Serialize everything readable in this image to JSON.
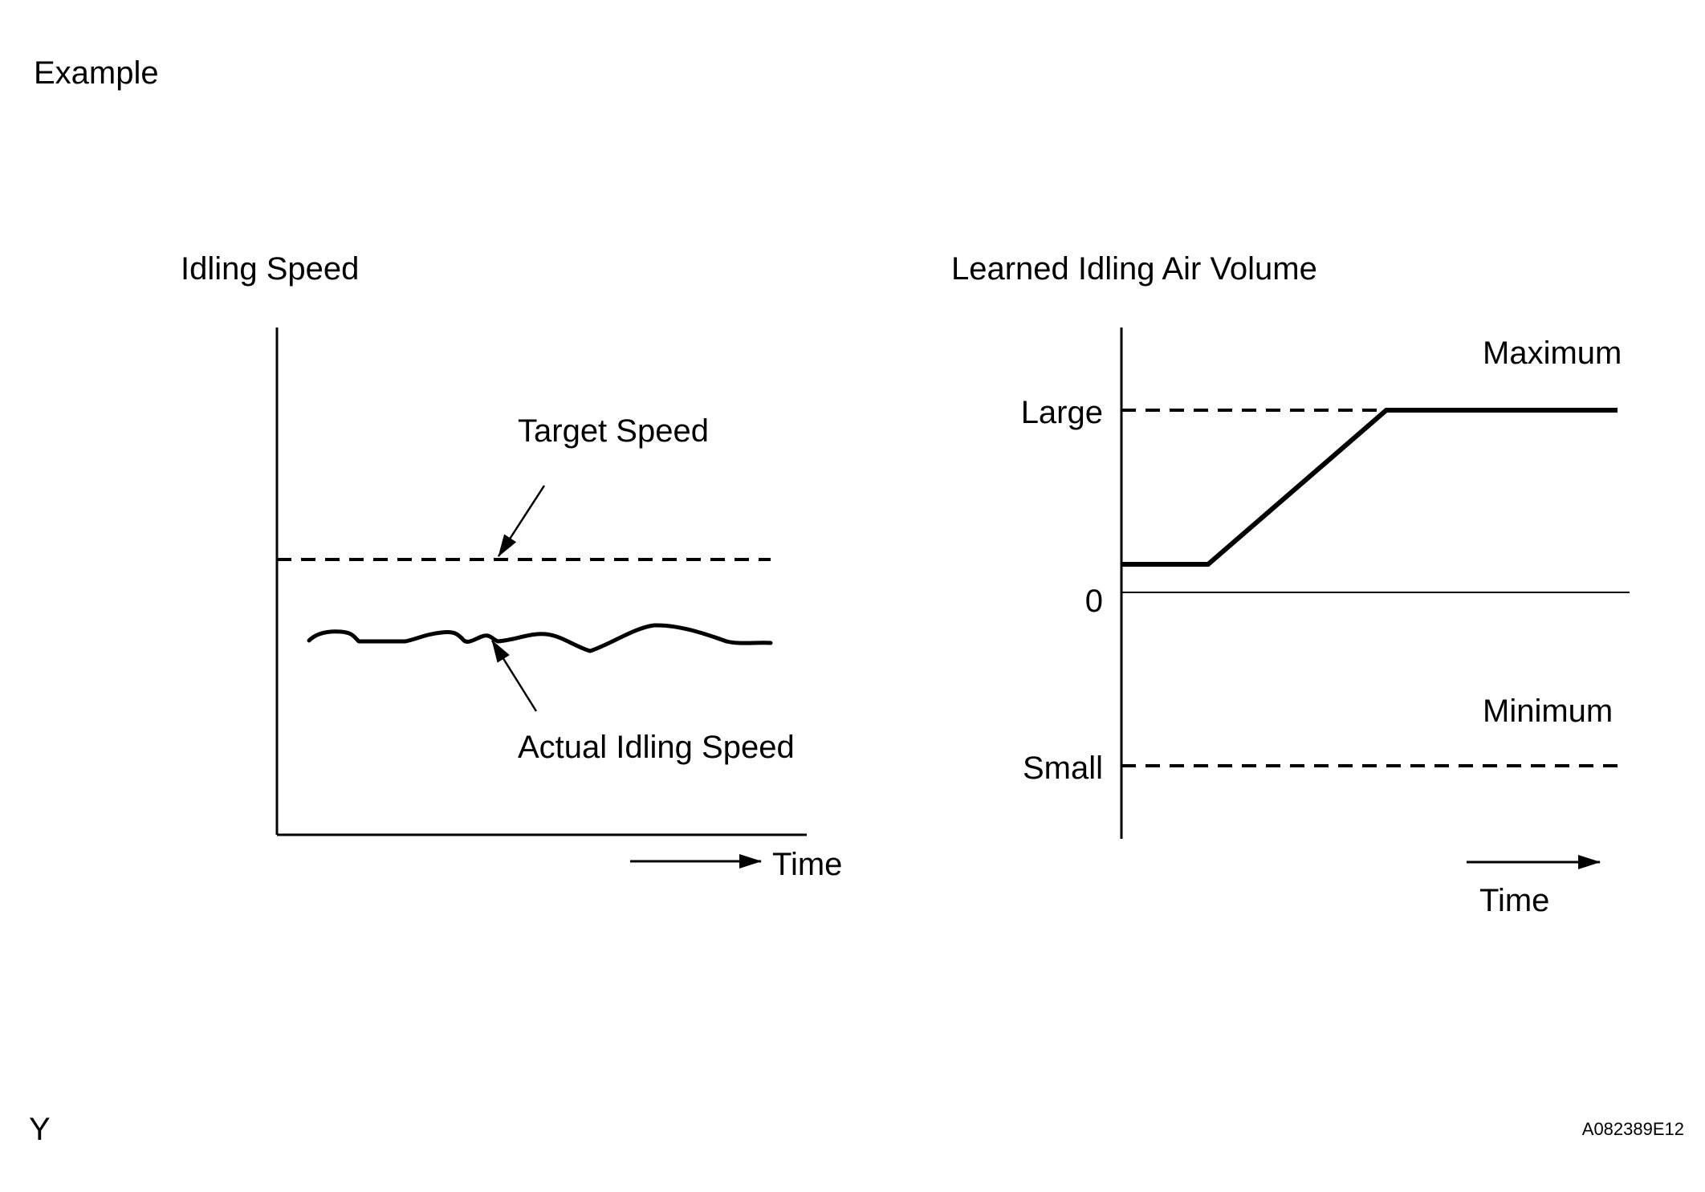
{
  "page": {
    "heading": "Example",
    "corner_mark": "Y",
    "figure_code": "A082389E12"
  },
  "idle_chart": {
    "title": "Idling Speed",
    "target_label": "Target Speed",
    "actual_label": "Actual Idling Speed",
    "time_label": "Time"
  },
  "air_chart": {
    "title": "Learned Idling Air Volume",
    "large_label": "Large",
    "zero_label": "0",
    "small_label": "Small",
    "maximum_label": "Maximum",
    "minimum_label": "Minimum",
    "time_label": "Time"
  },
  "chart_data": [
    {
      "type": "line",
      "title": "Idling Speed",
      "xlabel": "Time",
      "ylabel": "",
      "series": [
        {
          "name": "Target Speed",
          "style": "dashed",
          "shape": "constant"
        },
        {
          "name": "Actual Idling Speed",
          "style": "solid",
          "shape": "fluctuating below target"
        }
      ]
    },
    {
      "type": "line",
      "title": "Learned Idling Air Volume",
      "xlabel": "Time",
      "ylabel": "",
      "yticks": [
        "Small",
        "0",
        "Large"
      ],
      "series": [
        {
          "name": "Learned Idling Air Volume",
          "style": "solid",
          "shape": "flat slightly above 0, rises linearly to Large, then stays at Large"
        },
        {
          "name": "Maximum",
          "style": "dashed",
          "level": "Large"
        },
        {
          "name": "Minimum",
          "style": "dashed",
          "level": "Small"
        }
      ]
    }
  ]
}
